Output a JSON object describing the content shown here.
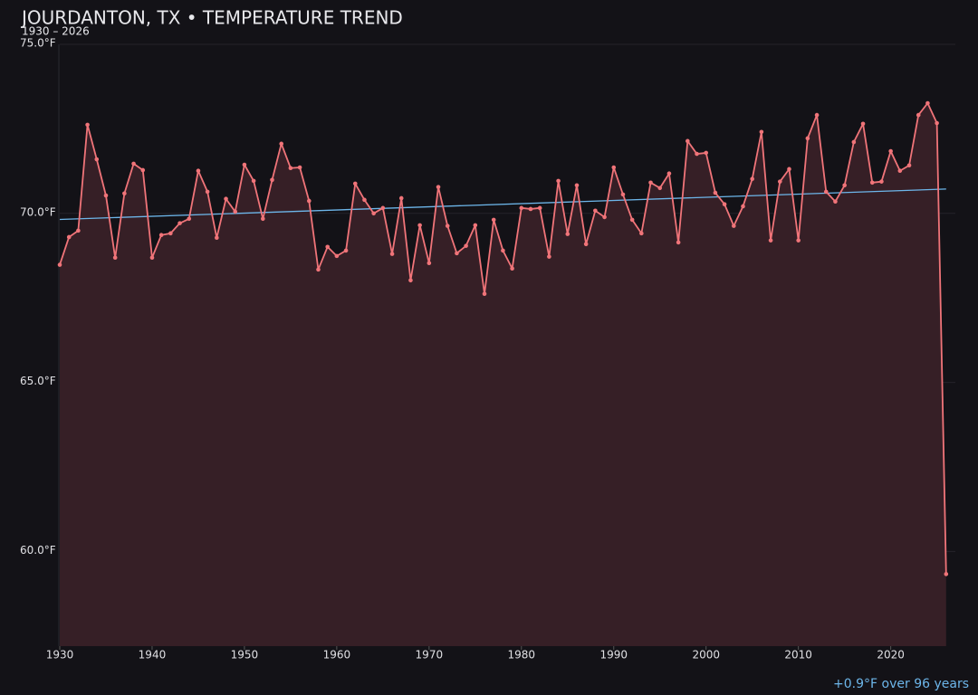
{
  "chart_data": {
    "type": "line",
    "title": "JOURDANTON, TX • TEMPERATURE TREND",
    "subtitle": "1930 – 2026",
    "annotation": "+0.9°F over 96 years",
    "x": [
      1930,
      1931,
      1932,
      1933,
      1934,
      1935,
      1936,
      1937,
      1938,
      1939,
      1940,
      1941,
      1942,
      1943,
      1944,
      1945,
      1946,
      1947,
      1948,
      1949,
      1950,
      1951,
      1952,
      1953,
      1954,
      1955,
      1956,
      1957,
      1958,
      1959,
      1960,
      1961,
      1962,
      1963,
      1964,
      1965,
      1966,
      1967,
      1968,
      1969,
      1970,
      1971,
      1972,
      1973,
      1974,
      1975,
      1976,
      1977,
      1978,
      1979,
      1980,
      1981,
      1982,
      1983,
      1984,
      1985,
      1986,
      1987,
      1988,
      1989,
      1990,
      1991,
      1992,
      1993,
      1994,
      1995,
      1996,
      1997,
      1998,
      1999,
      2000,
      2001,
      2002,
      2003,
      2004,
      2005,
      2006,
      2007,
      2008,
      2009,
      2010,
      2011,
      2012,
      2013,
      2014,
      2015,
      2016,
      2017,
      2018,
      2019,
      2020,
      2021,
      2022,
      2023,
      2024,
      2025,
      2026
    ],
    "series": [
      {
        "color": "#f07479",
        "area_color": "#361f26",
        "values": [
          68.48,
          69.3,
          69.49,
          72.62,
          71.6,
          70.53,
          68.69,
          70.59,
          71.47,
          71.28,
          68.69,
          69.36,
          69.41,
          69.71,
          69.84,
          71.26,
          70.64,
          69.28,
          70.43,
          70.05,
          71.44,
          70.96,
          69.84,
          70.99,
          72.06,
          71.34,
          71.36,
          70.37,
          68.34,
          69.01,
          68.74,
          68.9,
          70.88,
          70.4,
          70.0,
          70.16,
          68.8,
          70.45,
          68.02,
          69.65,
          68.53,
          70.78,
          69.63,
          68.82,
          69.04,
          69.65,
          67.62,
          69.81,
          68.9,
          68.37,
          70.16,
          70.13,
          70.16,
          68.72,
          70.96,
          69.39,
          70.83,
          69.09,
          70.08,
          69.89,
          71.36,
          70.56,
          69.81,
          69.41,
          70.91,
          70.75,
          71.18,
          69.14,
          72.14,
          71.76,
          71.79,
          70.61,
          70.27,
          69.63,
          70.21,
          71.02,
          72.41,
          69.2,
          70.94,
          71.31,
          69.2,
          72.22,
          72.91,
          70.64,
          70.35,
          70.83,
          72.11,
          72.65,
          70.91,
          70.94,
          71.84,
          71.26,
          71.42,
          72.91,
          73.26,
          72.67,
          59.33
        ]
      }
    ],
    "trend": {
      "x": [
        1930,
        2026
      ],
      "values": [
        69.82,
        70.72
      ],
      "color": "#6db6ea"
    },
    "xlim": [
      1930,
      2027
    ],
    "ylim": [
      57.2,
      75
    ],
    "xticks": [
      1930,
      1940,
      1950,
      1960,
      1970,
      1980,
      1990,
      2000,
      2010,
      2020
    ],
    "yticks": [
      {
        "value": 60,
        "label": "60.0°F"
      },
      {
        "value": 65,
        "label": "65.0°F"
      },
      {
        "value": 70,
        "label": "70.0°F"
      },
      {
        "value": 75,
        "label": "75.0°F"
      }
    ],
    "grid": true
  }
}
